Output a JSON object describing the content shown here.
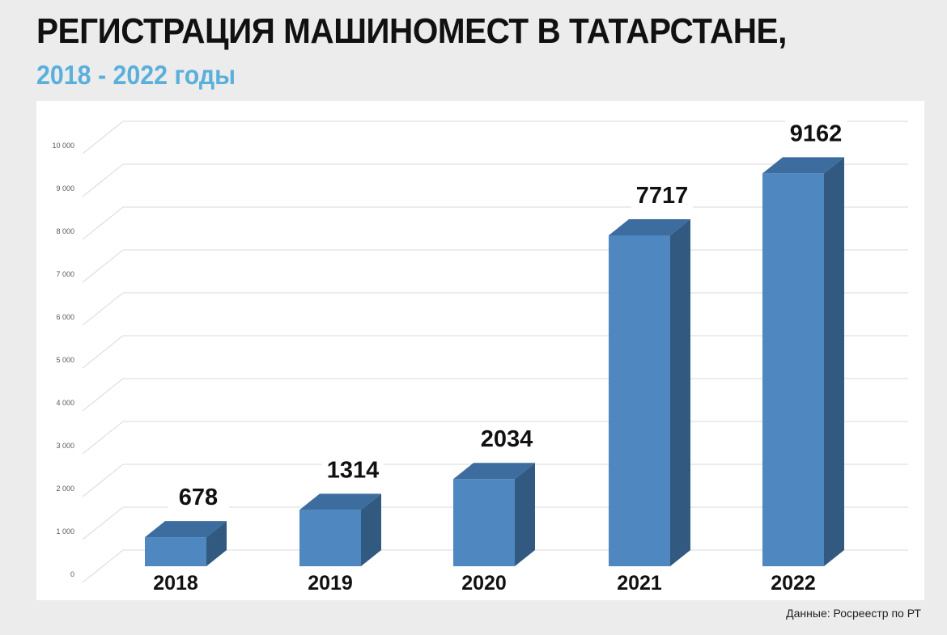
{
  "header": {
    "title": "РЕГИСТРАЦИЯ МАШИНОМЕСТ В ТАТАРСТАНЕ,",
    "subtitle": "2018 - 2022 годы"
  },
  "source": "Данные: Росреестр по РТ",
  "colors": {
    "bar_front": "#4f87c0",
    "bar_side": "#325a80",
    "bar_top": "#3d6c9e",
    "grid": "#d9d9d9",
    "accent": "#5ab0db"
  },
  "chart_data": {
    "type": "bar",
    "title": "РЕГИСТРАЦИЯ МАШИНОМЕСТ В ТАТАРСТАНЕ,",
    "subtitle": "2018 - 2022 годы",
    "categories": [
      "2018",
      "2019",
      "2020",
      "2021",
      "2022"
    ],
    "values": [
      678,
      1314,
      2034,
      7717,
      9162
    ],
    "value_labels": [
      "678",
      "1314",
      "2034",
      "7717",
      "9162"
    ],
    "ylim": [
      0,
      10000
    ],
    "yticks": [
      0,
      1000,
      2000,
      3000,
      4000,
      5000,
      6000,
      7000,
      8000,
      9000,
      10000
    ],
    "ytick_labels": [
      "0",
      "1 000",
      "2 000",
      "3 000",
      "4 000",
      "5 000",
      "6 000",
      "7 000",
      "8 000",
      "9 000",
      "10 000"
    ],
    "grid": true,
    "style": "3d-column",
    "legend": "none"
  }
}
